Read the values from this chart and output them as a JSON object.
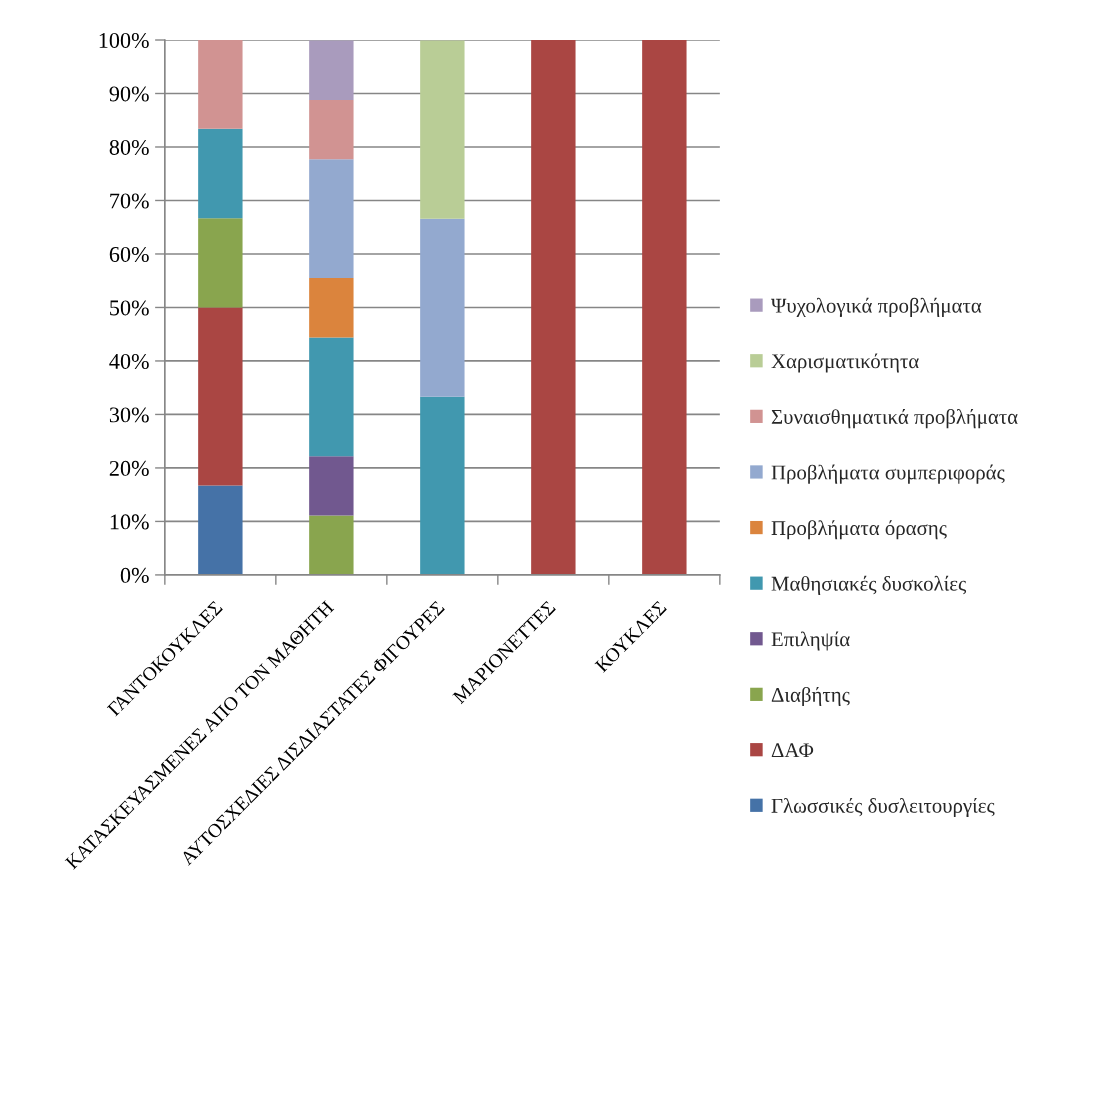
{
  "chart_data": {
    "type": "bar",
    "stacked": true,
    "categories": [
      "ΓΑΝΤΟΚΟΥΚΛΕΣ",
      "ΚΑΤΑΣΚΕΥΑΣΜΕΝΕΣ ΑΠΟ ΤΟΝ ΜΑΘΗΤΗ",
      "ΑΥΤΟΣΧΕΔΙΕΣ ΔΙΣΔΙΑΣΤΑΤΕΣ ΦΙΓΟΥΡΕΣ",
      "ΜΑΡΙΟΝΕΤΤΕΣ",
      "ΚΟΥΚΛΕΣ"
    ],
    "series": [
      {
        "name": "Γλωσσικές δυσλειτουργίες",
        "color": "#4572a7",
        "values": [
          16.7,
          null,
          null,
          null,
          null
        ]
      },
      {
        "name": "ΔΑΦ",
        "color": "#aa4643",
        "values": [
          33.3,
          null,
          null,
          100,
          100
        ]
      },
      {
        "name": "Διαβήτης",
        "color": "#89a54e",
        "values": [
          16.7,
          11.1,
          null,
          null,
          null
        ]
      },
      {
        "name": "Επιληψία",
        "color": "#71588f",
        "values": [
          null,
          11.1,
          null,
          null,
          null
        ]
      },
      {
        "name": "Μαθησιακές δυσκολίες",
        "color": "#4198af",
        "values": [
          16.7,
          22.2,
          33.3,
          null,
          null
        ]
      },
      {
        "name": "Προβλήματα όρασης",
        "color": "#db843d",
        "values": [
          null,
          11.1,
          null,
          null,
          null
        ]
      },
      {
        "name": "Προβλήματα συμπεριφοράς",
        "color": "#93a9cf",
        "values": [
          null,
          22.2,
          33.3,
          null,
          null
        ]
      },
      {
        "name": "Συναισθηματικά προβλήματα",
        "color": "#d19392",
        "values": [
          16.7,
          11.1,
          null,
          null,
          null
        ]
      },
      {
        "name": "Χαρισματικότητα",
        "color": "#b9cd96",
        "values": [
          null,
          null,
          33.3,
          null,
          null
        ]
      },
      {
        "name": "Ψυχολογικά προβλήματα",
        "color": "#a99bbd",
        "values": [
          null,
          11.1,
          null,
          null,
          null
        ]
      }
    ],
    "ylim": [
      0,
      100
    ],
    "yticks": [
      {
        "value": 0,
        "label": "0%"
      },
      {
        "value": 10,
        "label": "10%"
      },
      {
        "value": 20,
        "label": "20%"
      },
      {
        "value": 30,
        "label": "30%"
      },
      {
        "value": 40,
        "label": "40%"
      },
      {
        "value": 50,
        "label": "50%"
      },
      {
        "value": 60,
        "label": "60%"
      },
      {
        "value": 70,
        "label": "70%"
      },
      {
        "value": 80,
        "label": "80%"
      },
      {
        "value": 90,
        "label": "90%"
      },
      {
        "value": 100,
        "label": "100%"
      }
    ],
    "grid": "y",
    "legend": "right"
  }
}
